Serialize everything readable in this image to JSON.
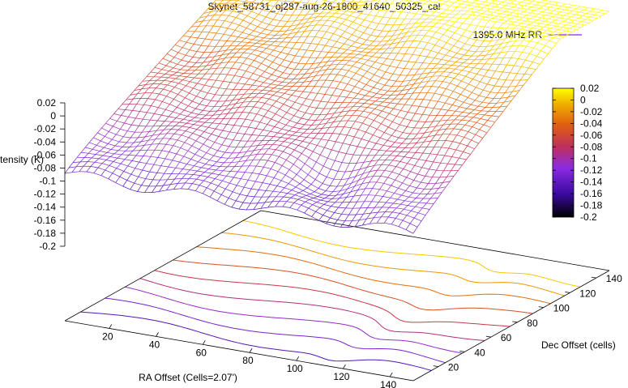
{
  "chart_data": {
    "type": "surface3d",
    "title": "Skynet_58731_oj287-aug-26-1800_41640_50325_cal",
    "xlabel": "RA Offset (Cells=2.07')",
    "ylabel": "Dec Offset (cells)",
    "zlabel": "Intensity (K)",
    "legend": {
      "label": "1395.0 MHz RR",
      "position": "top-right",
      "color": "#8a2be2"
    },
    "x_ticks": [
      "20",
      "40",
      "60",
      "80",
      "100",
      "120",
      "140"
    ],
    "y_ticks": [
      "20",
      "40",
      "60",
      "80",
      "100",
      "120",
      "140"
    ],
    "z_ticks": [
      "0.02",
      "0",
      "-0.02",
      "-0.04",
      "-0.06",
      "-0.08",
      "-0.1",
      "-0.12",
      "-0.14",
      "-0.16",
      "-0.18",
      "-0.2"
    ],
    "colorbar_ticks": [
      "0.02",
      "0",
      "-0.02",
      "-0.04",
      "-0.06",
      "-0.08",
      "-0.1",
      "-0.12",
      "-0.14",
      "-0.16",
      "-0.18",
      "-0.2"
    ],
    "xlim": [
      1,
      150
    ],
    "ylim": [
      1,
      150
    ],
    "zlim": [
      -0.2,
      0.02
    ],
    "colormap": [
      "#000000",
      "#3a0aa0",
      "#8a2be2",
      "#c0305a",
      "#e06010",
      "#f0b000",
      "#ffff00"
    ],
    "surface_model": "z increases with dec offset and ra offset; minimum about -0.14 near ra 1-100, dec 1; maximum about 0.02 near dec 150",
    "contours": "contour lines projected on base plane"
  }
}
